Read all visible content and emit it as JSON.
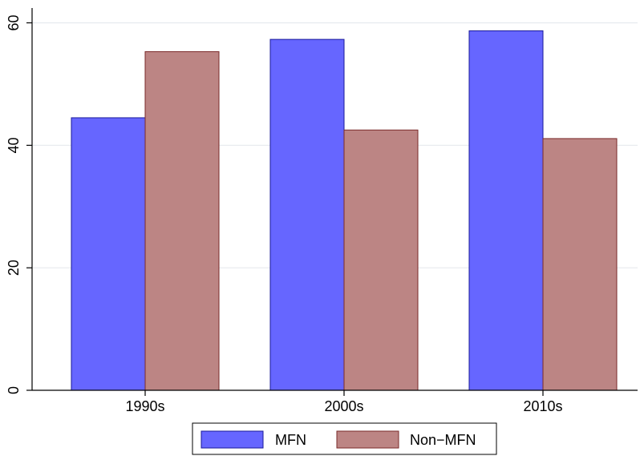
{
  "chart_data": {
    "type": "bar",
    "categories": [
      "1990s",
      "2000s",
      "2010s"
    ],
    "series": [
      {
        "name": "MFN",
        "values": [
          44.5,
          57.3,
          58.7
        ],
        "fill": "#6666ff",
        "stroke": "#1a1a9a"
      },
      {
        "name": "Non−MFN",
        "values": [
          55.3,
          42.5,
          41.1
        ],
        "fill": "#bc8584",
        "stroke": "#7a2a2a"
      }
    ],
    "title": "",
    "xlabel": "",
    "ylabel": "",
    "ylim": [
      0,
      60
    ],
    "yticks": [
      0,
      20,
      40,
      60
    ],
    "grid": true,
    "legend_position": "bottom"
  }
}
